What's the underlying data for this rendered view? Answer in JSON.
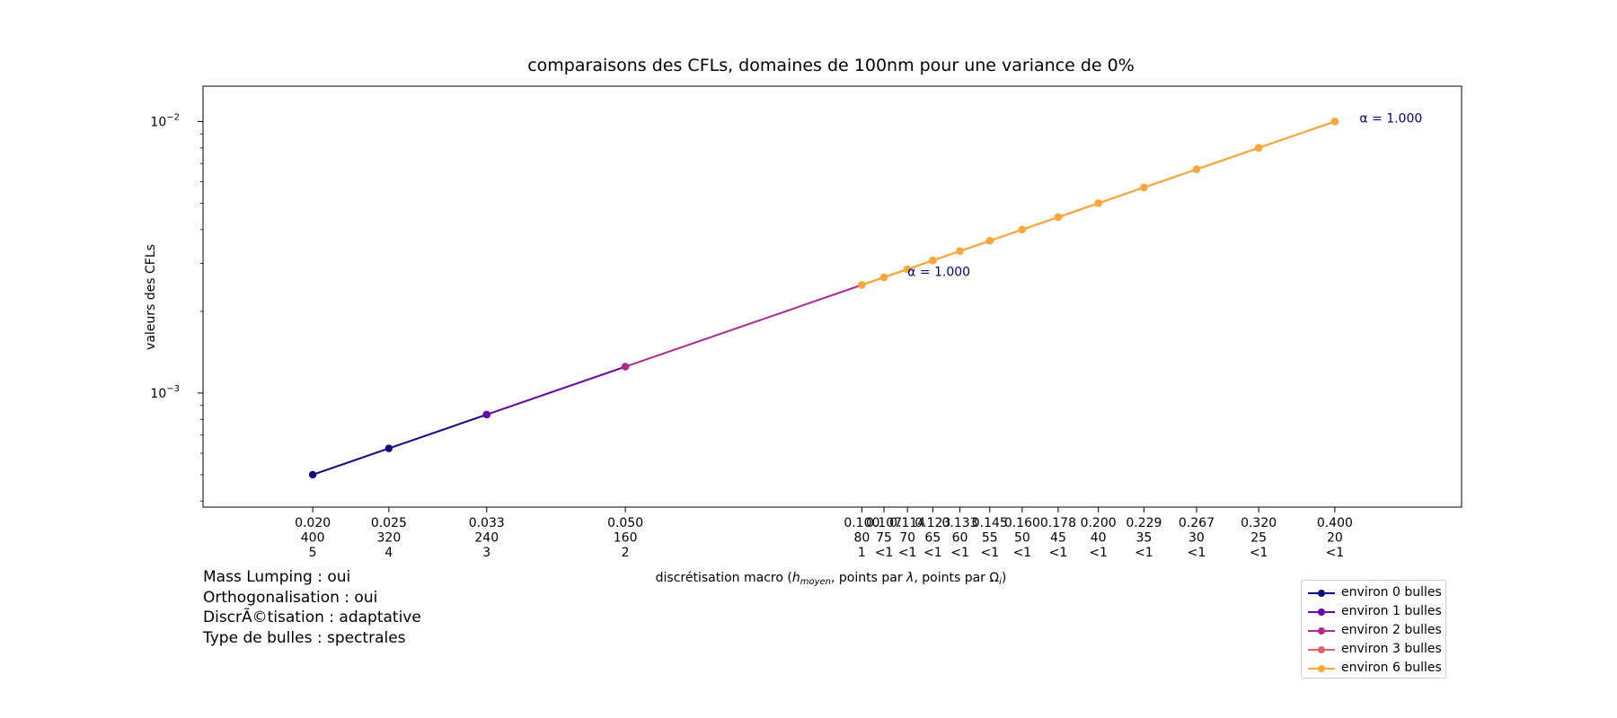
{
  "chart_data": {
    "type": "line",
    "title": "comparaisons des CFLs, domaines de 100nm pour une variance de 0%",
    "ylabel": "valeurs des CFLs",
    "xlabel_prefix": "discrétisation macro (",
    "xlabel_h": "h",
    "xlabel_h_sub": "moyen",
    "xlabel_mid": ", points par ",
    "xlabel_lambda": "λ",
    "xlabel_mid2": ", points par ",
    "xlabel_omega": "Ω",
    "xlabel_omega_sub": "i",
    "xlabel_suffix": ")",
    "yscale": "log",
    "xscale": "log",
    "xlim": [
      0.0145,
      0.58
    ],
    "ylim": [
      0.00038,
      0.0135
    ],
    "y_ticks": [
      {
        "value": 0.01,
        "base": "10",
        "exp": "−2"
      },
      {
        "value": 0.001,
        "base": "10",
        "exp": "−3"
      }
    ],
    "x_ticks": [
      {
        "value": 0.02,
        "lines": [
          "0.020",
          "400",
          "5"
        ]
      },
      {
        "value": 0.025,
        "lines": [
          "0.025",
          "320",
          "4"
        ]
      },
      {
        "value": 0.0333,
        "lines": [
          "0.033",
          "240",
          "3"
        ]
      },
      {
        "value": 0.05,
        "lines": [
          "0.050",
          "160",
          "2"
        ]
      },
      {
        "value": 0.1,
        "lines": [
          "0.100",
          "80",
          "1"
        ]
      },
      {
        "value": 0.1067,
        "lines": [
          "0.107",
          "75",
          "<1"
        ]
      },
      {
        "value": 0.1143,
        "lines": [
          "0.114",
          "70",
          "<1"
        ]
      },
      {
        "value": 0.1231,
        "lines": [
          "0.123",
          "65",
          "<1"
        ]
      },
      {
        "value": 0.1333,
        "lines": [
          "0.133",
          "60",
          "<1"
        ]
      },
      {
        "value": 0.1455,
        "lines": [
          "0.145",
          "55",
          "<1"
        ]
      },
      {
        "value": 0.16,
        "lines": [
          "0.160",
          "50",
          "<1"
        ]
      },
      {
        "value": 0.1778,
        "lines": [
          "0.178",
          "45",
          "<1"
        ]
      },
      {
        "value": 0.2,
        "lines": [
          "0.200",
          "40",
          "<1"
        ]
      },
      {
        "value": 0.2286,
        "lines": [
          "0.229",
          "35",
          "<1"
        ]
      },
      {
        "value": 0.2667,
        "lines": [
          "0.267",
          "30",
          "<1"
        ]
      },
      {
        "value": 0.32,
        "lines": [
          "0.320",
          "25",
          "<1"
        ]
      },
      {
        "value": 0.4,
        "lines": [
          "0.400",
          "20",
          "<1"
        ]
      }
    ],
    "series": [
      {
        "name": "environ 0 bulles",
        "color": "#0d0887",
        "x": [
          0.02,
          0.025,
          0.0333
        ],
        "y": [
          0.0005,
          0.000625,
          0.000833
        ]
      },
      {
        "name": "environ 1 bulles",
        "color": "#6a00a8",
        "x": [
          0.0333,
          0.05
        ],
        "y": [
          0.000833,
          0.00125
        ]
      },
      {
        "name": "environ 2 bulles",
        "color": "#b12a90",
        "x": [
          0.05,
          0.1
        ],
        "y": [
          0.00125,
          0.0025
        ]
      },
      {
        "name": "environ 3 bulles",
        "color": "#e16462",
        "x": [
          0.1,
          0.1067,
          0.1143,
          0.1231,
          0.1333,
          0.1455,
          0.16,
          0.1778,
          0.2,
          0.2286,
          0.2667,
          0.32,
          0.4
        ],
        "y": [
          0.0025,
          0.002667,
          0.002857,
          0.003077,
          0.003333,
          0.003636,
          0.004,
          0.004444,
          0.005,
          0.005714,
          0.006667,
          0.008,
          0.01
        ]
      },
      {
        "name": "environ 6 bulles",
        "color": "#fca636",
        "x": [
          0.1,
          0.1067,
          0.1143,
          0.1231,
          0.1333,
          0.1455,
          0.16,
          0.1778,
          0.2,
          0.2286,
          0.2667,
          0.32,
          0.4
        ],
        "y": [
          0.0025,
          0.002667,
          0.002857,
          0.003077,
          0.003333,
          0.003636,
          0.004,
          0.004444,
          0.005,
          0.005714,
          0.006667,
          0.008,
          0.01
        ]
      }
    ],
    "annotations": [
      {
        "x": 0.1143,
        "y": 0.0028,
        "text": "α = 1.000",
        "color": "#00008b"
      },
      {
        "x": 0.43,
        "y": 0.0103,
        "text": "α = 1.000",
        "color": "#00008b"
      }
    ],
    "legend_placement": "lower-right, outside plot"
  },
  "info_lines": [
    "Mass Lumping : oui",
    "Orthogonalisation : oui",
    "DiscrÃ©tisation : adaptative",
    "Type de bulles : spectrales"
  ]
}
